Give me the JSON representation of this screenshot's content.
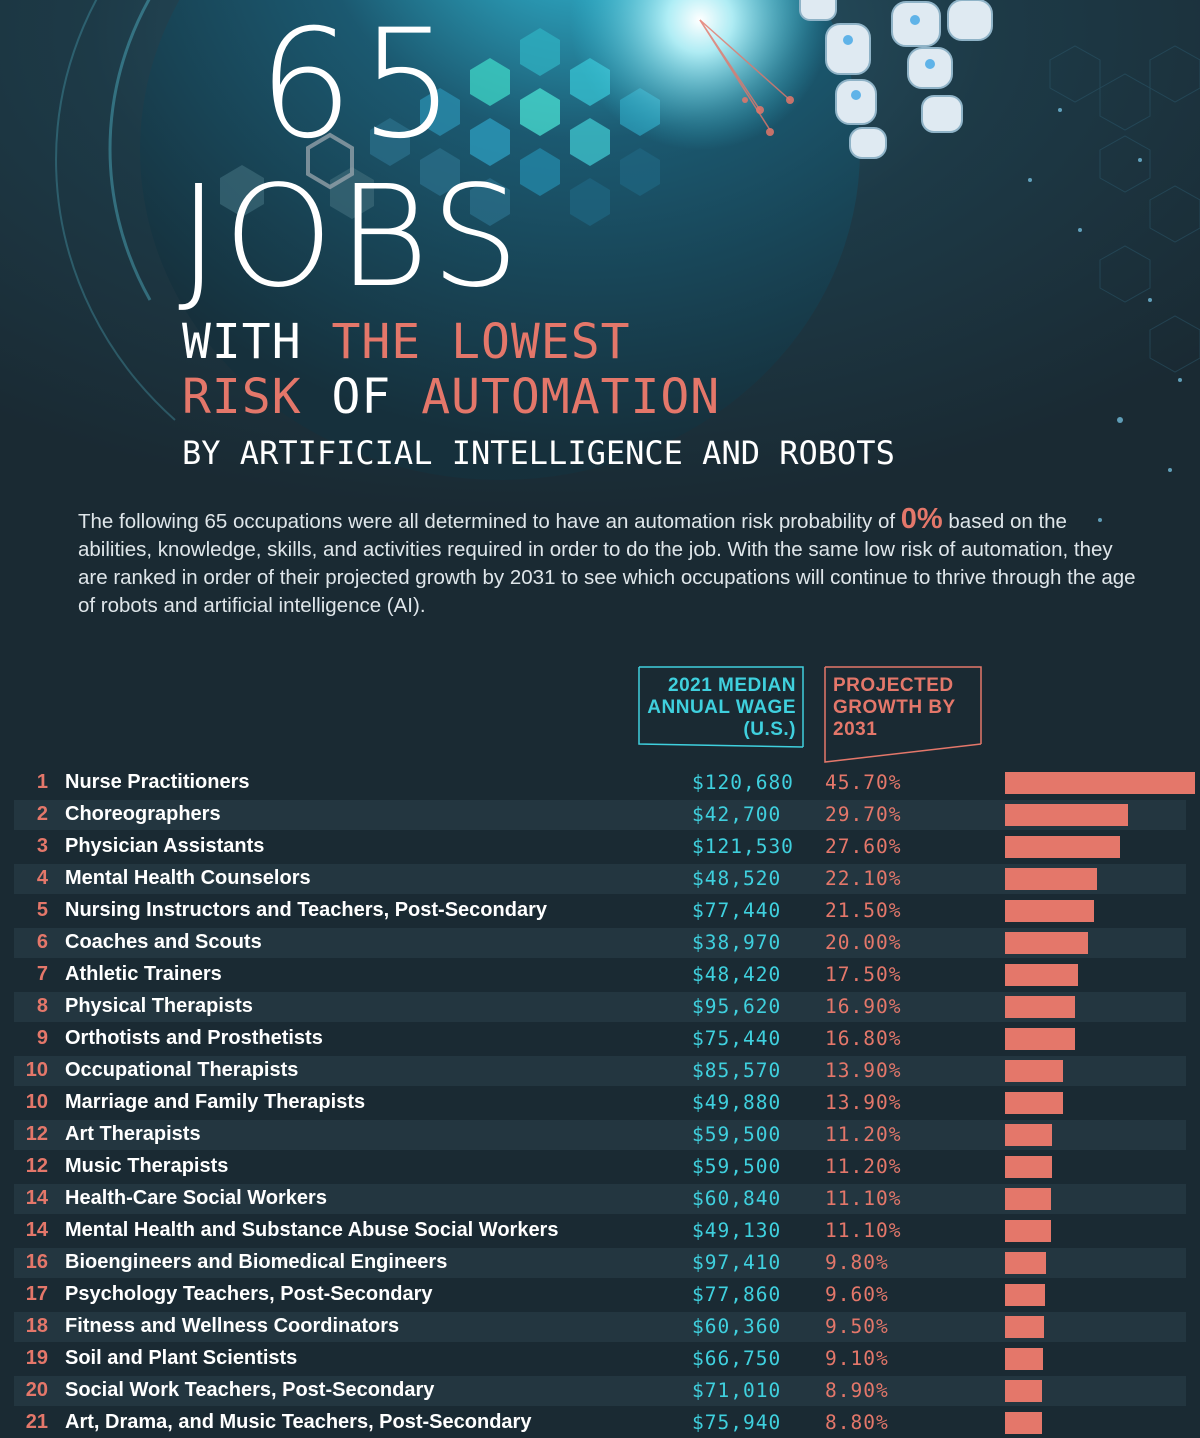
{
  "header": {
    "big_number": "65",
    "big_word": "JOBS",
    "line1_white": "WITH",
    "line1_salmon": "THE LOWEST",
    "line2_salmon_a": "RISK",
    "line2_white": "OF",
    "line2_salmon_b": "AUTOMATION",
    "subtitle": "BY ARTIFICIAL INTELLIGENCE AND ROBOTS"
  },
  "intro": {
    "before": "The following 65 occupations were all determined to have an automation risk probability of",
    "pct": "0%",
    "after": "based on the abilities, knowledge, skills, and activities required in order to do the job. With the same low risk of automation, they are ranked in order of their projected growth by 2031 to see which occupations will  continue to thrive through the age of robots and artificial intelligence (AI)."
  },
  "columns": {
    "wage": [
      "2021 MEDIAN",
      "ANNUAL WAGE",
      "(U.S.)"
    ],
    "growth": [
      "PROJECTED",
      "GROWTH BY",
      "2031"
    ]
  },
  "colors": {
    "background": "#1a2a33",
    "row_alt": "#233640",
    "accent_salmon": "#e4776a",
    "accent_cyan": "#3fd0de"
  },
  "chart_data": {
    "type": "bar",
    "orientation": "horizontal",
    "categories": [
      "Nurse Practitioners",
      "Choreographers",
      "Physician Assistants",
      "Mental Health Counselors",
      "Nursing Instructors and Teachers, Post-Secondary",
      "Coaches and Scouts",
      "Athletic Trainers",
      "Physical Therapists",
      "Orthotists and Prosthetists",
      "Occupational Therapists",
      "Marriage and Family Therapists",
      "Art Therapists",
      "Music Therapists",
      "Health-Care Social Workers",
      "Mental Health and Substance Abuse Social Workers",
      "Bioengineers and Biomedical Engineers",
      "Psychology Teachers, Post-Secondary",
      "Fitness and Wellness Coordinators",
      "Soil and Plant Scientists",
      "Social Work Teachers, Post-Secondary",
      "Art, Drama, and Music Teachers, Post-Secondary"
    ],
    "ranks": [
      "1",
      "2",
      "3",
      "4",
      "5",
      "6",
      "7",
      "8",
      "9",
      "10",
      "10",
      "12",
      "12",
      "14",
      "14",
      "16",
      "17",
      "18",
      "19",
      "20",
      "21"
    ],
    "wages": [
      "$120,680",
      "$42,700",
      "$121,530",
      "$48,520",
      "$77,440",
      "$38,970",
      "$48,420",
      "$95,620",
      "$75,440",
      "$85,570",
      "$49,880",
      "$59,500",
      "$59,500",
      "$60,840",
      "$49,130",
      "$97,410",
      "$77,860",
      "$60,360",
      "$66,750",
      "$71,010",
      "$75,940"
    ],
    "growth_labels": [
      "45.70%",
      "29.70%",
      "27.60%",
      "22.10%",
      "21.50%",
      "20.00%",
      "17.50%",
      "16.90%",
      "16.80%",
      "13.90%",
      "13.90%",
      "11.20%",
      "11.20%",
      "11.10%",
      "11.10%",
      "9.80%",
      "9.60%",
      "9.50%",
      "9.10%",
      "8.90%",
      "8.80%"
    ],
    "values": [
      45.7,
      29.7,
      27.6,
      22.1,
      21.5,
      20.0,
      17.5,
      16.9,
      16.8,
      13.9,
      13.9,
      11.2,
      11.2,
      11.1,
      11.1,
      9.8,
      9.6,
      9.5,
      9.1,
      8.9,
      8.8
    ],
    "xlim": [
      0,
      45.7
    ]
  }
}
